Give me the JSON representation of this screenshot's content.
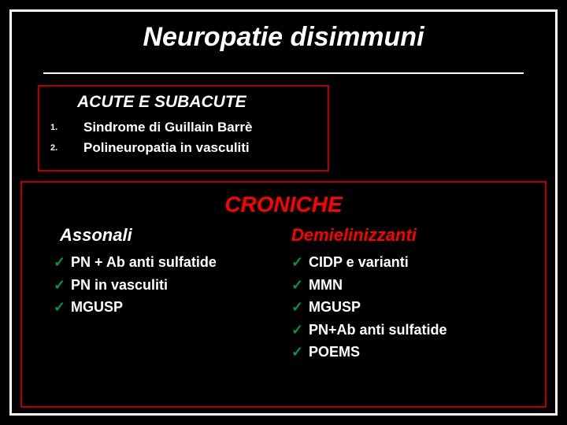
{
  "title": "Neuropatie disimmuni",
  "colors": {
    "bg": "#000000",
    "text": "#ffffff",
    "border_outer": "#ffffff",
    "border_box": "#b30000",
    "heading_red": "#ff0000",
    "check_green": "#009a3d"
  },
  "box1": {
    "heading": "ACUTE E SUBACUTE",
    "items": [
      {
        "num": "1.",
        "text": "Sindrome di Guillain Barrè"
      },
      {
        "num": "2.",
        "text": "Polineuropatia in vasculiti"
      }
    ]
  },
  "box2": {
    "heading": "CRONICHE",
    "left": {
      "subheading": "Assonali",
      "items": [
        "PN + Ab anti sulfatide",
        "PN in vasculiti",
        "MGUSP"
      ]
    },
    "right": {
      "subheading": "Demielinizzanti",
      "items": [
        "CIDP e varianti",
        "MMN",
        "MGUSP",
        "PN+Ab anti sulfatide",
        "POEMS"
      ]
    }
  }
}
